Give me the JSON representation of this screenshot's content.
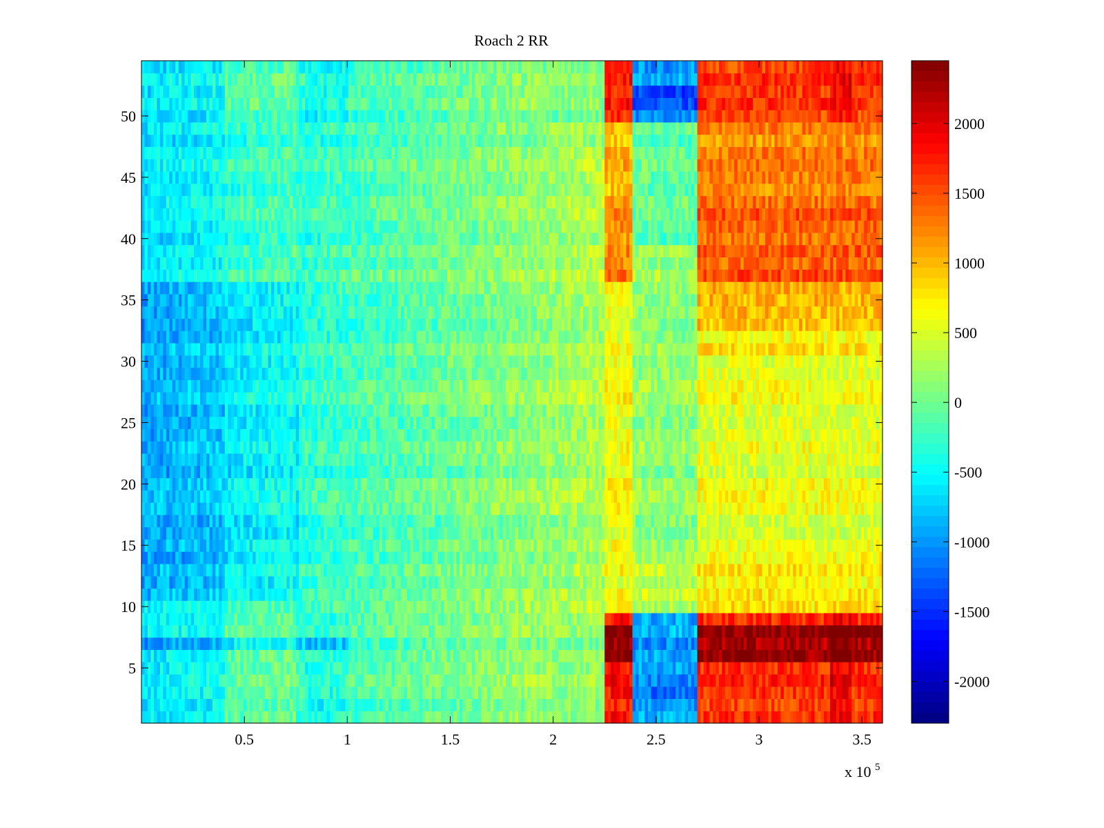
{
  "chart_data": {
    "type": "heatmap",
    "title": "Roach 2 RR",
    "xlabel": "",
    "ylabel": "",
    "x_multiplier_label": "x 10",
    "x_multiplier_exponent": "5",
    "xlim": [
      0,
      360000
    ],
    "ylim": [
      0.5,
      54.5
    ],
    "x_ticks": [
      50000,
      100000,
      150000,
      200000,
      250000,
      300000,
      350000
    ],
    "x_tick_labels": [
      "0.5",
      "1",
      "1.5",
      "2",
      "2.5",
      "3",
      "3.5"
    ],
    "y_ticks": [
      5,
      10,
      15,
      20,
      25,
      30,
      35,
      40,
      45,
      50
    ],
    "y_tick_labels": [
      "5",
      "10",
      "15",
      "20",
      "25",
      "30",
      "35",
      "40",
      "45",
      "50"
    ],
    "colormap": "jet",
    "clim": [
      -2300,
      2450
    ],
    "colorbar_ticks": [
      2000,
      1500,
      1000,
      500,
      0,
      -500,
      -1000,
      -1500,
      -2000
    ],
    "colorbar_tick_labels": [
      "2000",
      "1500",
      "1000",
      "500",
      "0",
      "-500",
      "-1000",
      "-1500",
      "-2000"
    ],
    "rows": 54,
    "x_segments": [
      {
        "x_start": 0,
        "x_end": 225000,
        "description": "mostly -1000 to 500 (blue-green), rising left to right"
      },
      {
        "x_start": 225000,
        "x_end": 239000,
        "description": "high band, up to ~2400 in rows 1-9 and 50-54"
      },
      {
        "x_start": 239000,
        "x_end": 270000,
        "description": "low band, down to ~-1400 in rows 1-9 and 50-54"
      },
      {
        "x_start": 270000,
        "x_end": 360000,
        "description": "high band, ~500-2400, max in rows 6-8"
      }
    ]
  }
}
